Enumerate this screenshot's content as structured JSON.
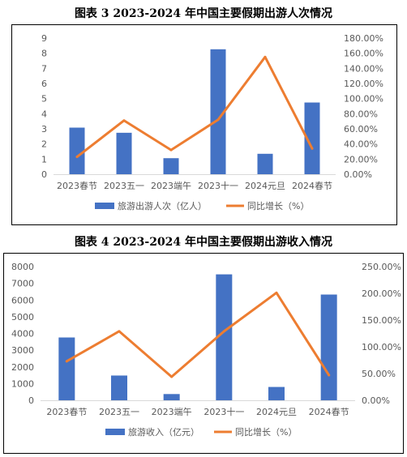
{
  "chart_data": [
    {
      "type": "bar",
      "title": "图表 3    2023-2024 年中国主要假期出游人次情况",
      "categories": [
        "2023春节",
        "2023五一",
        "2023端午",
        "2023十一",
        "2024元旦",
        "2024春节"
      ],
      "series": [
        {
          "name": "旅游出游人次（亿人）",
          "type": "bar",
          "axis": "left",
          "color": "#4472C4",
          "values": [
            3.08,
            2.74,
            1.06,
            8.26,
            1.35,
            4.74
          ]
        },
        {
          "name": "同比增长（%）",
          "type": "line",
          "axis": "right",
          "color": "#ED7D31",
          "values": [
            23.0,
            71.0,
            32.0,
            72.0,
            155.0,
            34.0
          ]
        }
      ],
      "y_left": {
        "min": 0,
        "max": 9,
        "step": 1,
        "ticks": [
          "0",
          "1",
          "2",
          "3",
          "4",
          "5",
          "6",
          "7",
          "8",
          "9"
        ]
      },
      "y_right": {
        "min": 0,
        "max": 180,
        "step": 20,
        "ticks": [
          "0.00%",
          "20.00%",
          "40.00%",
          "60.00%",
          "80.00%",
          "100.00%",
          "120.00%",
          "140.00%",
          "160.00%",
          "180.00%"
        ]
      },
      "grid": false,
      "legend": "bottom"
    },
    {
      "type": "bar",
      "title": "图表 4    2023-2024 年中国主要假期出游收入情况",
      "categories": [
        "2023春节",
        "2023五一",
        "2023端午",
        "2023十一",
        "2024元旦",
        "2024春节"
      ],
      "series": [
        {
          "name": "旅游收入（亿元）",
          "type": "bar",
          "axis": "left",
          "color": "#4472C4",
          "values": [
            3758,
            1481,
            373,
            7535,
            797,
            6327
          ]
        },
        {
          "name": "同比增长（%）",
          "type": "line",
          "axis": "right",
          "color": "#ED7D31",
          "values": [
            73.0,
            129.0,
            44.0,
            129.0,
            201.0,
            47.0
          ]
        }
      ],
      "y_left": {
        "min": 0,
        "max": 8000,
        "step": 1000,
        "ticks": [
          "0",
          "1000",
          "2000",
          "3000",
          "4000",
          "5000",
          "6000",
          "7000",
          "8000"
        ]
      },
      "y_right": {
        "min": 0,
        "max": 250,
        "step": 50,
        "ticks": [
          "0.00%",
          "50.00%",
          "100.00%",
          "150.00%",
          "200.00%",
          "250.00%"
        ]
      },
      "grid": false,
      "legend": "bottom"
    }
  ]
}
